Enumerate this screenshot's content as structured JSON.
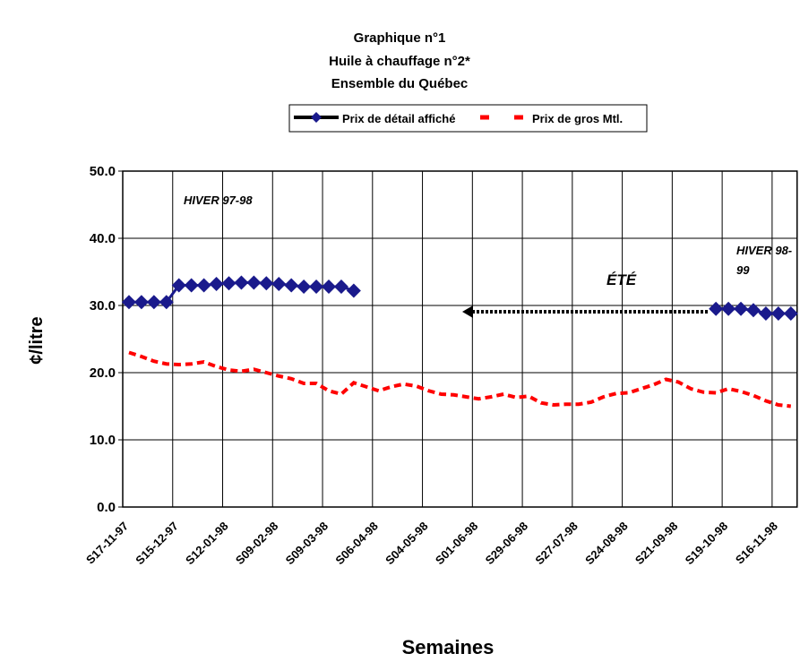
{
  "chart_data": {
    "type": "line",
    "title": [
      "Graphique n°1",
      "Huile à chauffage n°2*",
      "Ensemble du Québec"
    ],
    "y_label": "¢/litre",
    "x_label": "Semaines",
    "categories": [
      "S17-11-97",
      null,
      null,
      null,
      "S15-12-97",
      null,
      null,
      null,
      "S12-01-98",
      null,
      null,
      null,
      "S09-02-98",
      null,
      null,
      null,
      "S09-03-98",
      null,
      null,
      null,
      "S06-04-98",
      null,
      null,
      null,
      "S04-05-98",
      null,
      null,
      null,
      "S01-06-98",
      null,
      null,
      null,
      "S29-06-98",
      null,
      null,
      null,
      "S27-07-98",
      null,
      null,
      null,
      "S24-08-98",
      null,
      null,
      null,
      "S21-09-98",
      null,
      null,
      null,
      "S19-10-98",
      null,
      null,
      null,
      "S16-11-98",
      null
    ],
    "series": [
      {
        "name": "Prix de détail affiché",
        "color": "#1a1a8c",
        "values": [
          30.5,
          30.5,
          30.5,
          30.5,
          33.0,
          33.0,
          33.0,
          33.2,
          33.3,
          33.4,
          33.4,
          33.3,
          33.2,
          33.0,
          32.8,
          32.8,
          32.8,
          32.8,
          32.2,
          null,
          null,
          null,
          null,
          null,
          null,
          null,
          null,
          null,
          null,
          null,
          null,
          null,
          null,
          null,
          null,
          null,
          null,
          null,
          null,
          null,
          null,
          null,
          null,
          null,
          null,
          null,
          null,
          29.5,
          29.5,
          29.5,
          29.3,
          28.8,
          28.8,
          28.8
        ]
      },
      {
        "name": "Prix de gros Mtl.",
        "color": "#ff0000",
        "values": [
          23.0,
          22.4,
          21.7,
          21.3,
          21.2,
          21.3,
          21.6,
          20.9,
          20.4,
          20.2,
          20.5,
          20.0,
          19.5,
          19.1,
          18.4,
          18.4,
          17.3,
          16.8,
          18.5,
          17.9,
          17.3,
          17.9,
          18.3,
          18.0,
          17.3,
          16.8,
          16.7,
          16.4,
          16.1,
          16.4,
          16.8,
          16.3,
          16.5,
          15.5,
          15.2,
          15.3,
          15.3,
          15.6,
          16.4,
          16.9,
          17.0,
          17.6,
          18.2,
          19.0,
          18.6,
          17.6,
          17.1,
          17.0,
          17.6,
          17.2,
          16.6,
          15.8,
          15.2,
          15.0
        ]
      }
    ],
    "ylim": [
      0,
      50
    ],
    "yticks": [
      {
        "value": 0,
        "label": "0.0"
      },
      {
        "value": 10,
        "label": "10.0"
      },
      {
        "value": 20,
        "label": "20.0"
      },
      {
        "value": 30,
        "label": "30.0"
      },
      {
        "value": 40,
        "label": "40.0"
      },
      {
        "value": 50,
        "label": "50.0"
      }
    ],
    "grid": true,
    "annotations": [
      [
        "HIVER 97-98"
      ],
      [
        "ÉTÉ"
      ],
      [
        "HIVER 98-",
        "99"
      ]
    ]
  }
}
